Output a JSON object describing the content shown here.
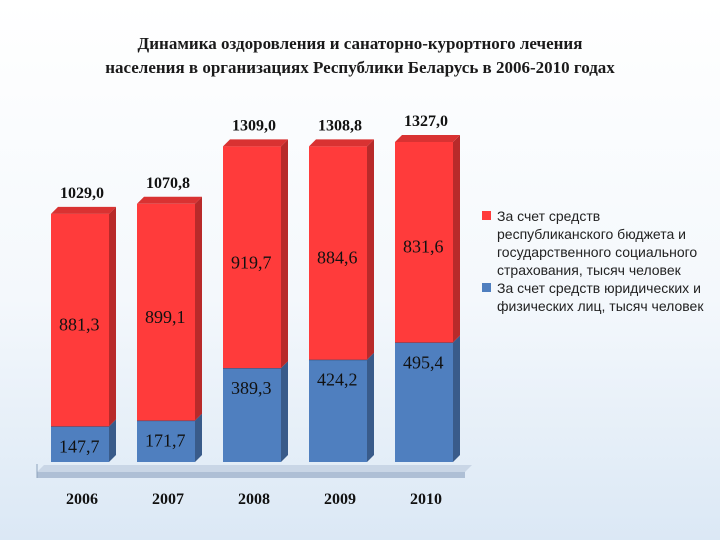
{
  "title_lines": [
    "Динамика оздоровления и санаторно-курортного лечения",
    "населения в организациях Республики Беларусь в 2006-2010 годах"
  ],
  "chart_data": {
    "type": "bar",
    "stacked": true,
    "categories": [
      "2006",
      "2007",
      "2008",
      "2009",
      "2010"
    ],
    "series": [
      {
        "name": "За счет средств юридических и физических лиц, тысяч человек",
        "color": "#4f7fbf",
        "values": [
          147.7,
          171.7,
          389.3,
          424.2,
          495.4
        ],
        "labels": [
          "147,7",
          "171,7",
          "389,3",
          "424,2",
          "495,4"
        ]
      },
      {
        "name": "За счет средств республиканского бюджета и государственного социального страхования, тысяч человек",
        "color": "#ff3b3b",
        "values": [
          881.3,
          899.1,
          919.7,
          884.6,
          831.6
        ],
        "labels": [
          "881,3",
          "899,1",
          "919,7",
          "884,6",
          "831,6"
        ]
      }
    ],
    "totals": [
      1029.0,
      1070.8,
      1309.0,
      1308.8,
      1327.0
    ],
    "total_labels": [
      "1029,0",
      "1070,8",
      "1309,0",
      "1308,8",
      "1327,0"
    ],
    "ylim": [
      0,
      1400
    ],
    "grid": false,
    "legend_position": "right"
  },
  "legend": [
    {
      "text": "За счет средств республиканского бюджета и государственного социального страхования, тысяч человек",
      "color": "#ff3b3b"
    },
    {
      "text": "За счет средств юридических и физических лиц, тысяч человек",
      "color": "#4f7fbf"
    }
  ]
}
